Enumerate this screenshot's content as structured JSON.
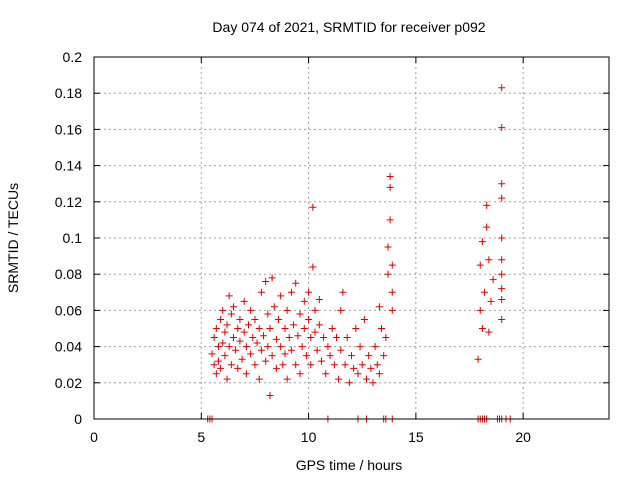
{
  "chart_data": {
    "type": "scatter",
    "title": "Day 074 of 2021, SRMTID for receiver p092",
    "xlabel": "GPS time / hours",
    "ylabel": "SRMTID / TECUs",
    "xlim": [
      0,
      24
    ],
    "ylim": [
      0,
      0.2
    ],
    "xticks": [
      0,
      5,
      10,
      15,
      20
    ],
    "xtick_labels": [
      "0",
      "5",
      "10",
      "15",
      "20"
    ],
    "yticks": [
      0,
      0.02,
      0.04,
      0.06,
      0.08,
      0.1,
      0.12,
      0.14,
      0.16,
      0.18,
      0.2
    ],
    "ytick_labels": [
      "0",
      "0.02",
      "0.04",
      "0.06",
      "0.08",
      "0.1",
      "0.12",
      "0.14",
      "0.16",
      "0.18",
      "0.2"
    ],
    "grid": true,
    "marker": "+",
    "color": "#e00000",
    "series": [
      {
        "name": "SRMTID",
        "points": [
          [
            5.5,
            0.036
          ],
          [
            5.6,
            0.045
          ],
          [
            5.6,
            0.03
          ],
          [
            5.7,
            0.05
          ],
          [
            5.7,
            0.025
          ],
          [
            5.8,
            0.04
          ],
          [
            5.8,
            0.032
          ],
          [
            5.9,
            0.055
          ],
          [
            5.9,
            0.028
          ],
          [
            6.0,
            0.042
          ],
          [
            6.0,
            0.06
          ],
          [
            6.1,
            0.035
          ],
          [
            6.1,
            0.048
          ],
          [
            6.2,
            0.022
          ],
          [
            6.2,
            0.052
          ],
          [
            6.3,
            0.068
          ],
          [
            6.3,
            0.04
          ],
          [
            6.4,
            0.058
          ],
          [
            6.4,
            0.03
          ],
          [
            6.5,
            0.045
          ],
          [
            6.5,
            0.062
          ],
          [
            6.6,
            0.038
          ],
          [
            6.7,
            0.05
          ],
          [
            6.7,
            0.028
          ],
          [
            6.8,
            0.043
          ],
          [
            6.8,
            0.055
          ],
          [
            6.9,
            0.033
          ],
          [
            7.0,
            0.048
          ],
          [
            7.0,
            0.065
          ],
          [
            7.1,
            0.04
          ],
          [
            7.1,
            0.025
          ],
          [
            7.2,
            0.052
          ],
          [
            7.3,
            0.036
          ],
          [
            7.3,
            0.06
          ],
          [
            7.4,
            0.045
          ],
          [
            7.5,
            0.03
          ],
          [
            7.5,
            0.055
          ],
          [
            7.6,
            0.042
          ],
          [
            7.7,
            0.022
          ],
          [
            7.7,
            0.05
          ],
          [
            7.8,
            0.038
          ],
          [
            7.8,
            0.07
          ],
          [
            7.9,
            0.046
          ],
          [
            8.0,
            0.076
          ],
          [
            8.0,
            0.032
          ],
          [
            8.1,
            0.058
          ],
          [
            8.1,
            0.04
          ],
          [
            8.2,
            0.013
          ],
          [
            8.2,
            0.05
          ],
          [
            8.3,
            0.078
          ],
          [
            8.3,
            0.035
          ],
          [
            8.4,
            0.062
          ],
          [
            8.5,
            0.044
          ],
          [
            8.5,
            0.028
          ],
          [
            8.6,
            0.055
          ],
          [
            8.7,
            0.04
          ],
          [
            8.7,
            0.068
          ],
          [
            8.8,
            0.03
          ],
          [
            8.9,
            0.05
          ],
          [
            8.9,
            0.036
          ],
          [
            9.0,
            0.06
          ],
          [
            9.0,
            0.022
          ],
          [
            9.1,
            0.045
          ],
          [
            9.2,
            0.038
          ],
          [
            9.2,
            0.07
          ],
          [
            9.3,
            0.052
          ],
          [
            9.4,
            0.03
          ],
          [
            9.4,
            0.075
          ],
          [
            9.5,
            0.046
          ],
          [
            9.6,
            0.058
          ],
          [
            9.6,
            0.025
          ],
          [
            9.7,
            0.04
          ],
          [
            9.8,
            0.065
          ],
          [
            9.8,
            0.05
          ],
          [
            9.9,
            0.035
          ],
          [
            10.0,
            0.055
          ],
          [
            10.0,
            0.07
          ],
          [
            10.1,
            0.045
          ],
          [
            10.1,
            0.03
          ],
          [
            10.2,
            0.117
          ],
          [
            10.2,
            0.084
          ],
          [
            10.3,
            0.06
          ],
          [
            10.3,
            0.048
          ],
          [
            10.4,
            0.038
          ],
          [
            10.5,
            0.052
          ],
          [
            10.5,
            0.066
          ],
          [
            10.6,
            0.032
          ],
          [
            10.7,
            0.045
          ],
          [
            10.8,
            0.025
          ],
          [
            10.9,
            0.04
          ],
          [
            11.0,
            0.035
          ],
          [
            11.1,
            0.05
          ],
          [
            11.2,
            0.03
          ],
          [
            11.3,
            0.045
          ],
          [
            11.4,
            0.022
          ],
          [
            11.5,
            0.038
          ],
          [
            11.5,
            0.06
          ],
          [
            11.6,
            0.07
          ],
          [
            11.7,
            0.03
          ],
          [
            11.8,
            0.045
          ],
          [
            11.9,
            0.02
          ],
          [
            12.0,
            0.035
          ],
          [
            12.1,
            0.028
          ],
          [
            12.2,
            0.05
          ],
          [
            12.3,
            0.025
          ],
          [
            12.4,
            0.04
          ],
          [
            12.5,
            0.03
          ],
          [
            12.6,
            0.055
          ],
          [
            12.7,
            0.022
          ],
          [
            12.8,
            0.035
          ],
          [
            12.9,
            0.028
          ],
          [
            13.0,
            0.02
          ],
          [
            13.1,
            0.04
          ],
          [
            13.2,
            0.03
          ],
          [
            13.3,
            0.062
          ],
          [
            13.3,
            0.025
          ],
          [
            13.4,
            0.05
          ],
          [
            13.5,
            0.035
          ],
          [
            13.6,
            0.045
          ],
          [
            13.7,
            0.08
          ],
          [
            13.7,
            0.095
          ],
          [
            13.8,
            0.11
          ],
          [
            13.8,
            0.134
          ],
          [
            13.8,
            0.128
          ],
          [
            13.9,
            0.06
          ],
          [
            13.9,
            0.085
          ],
          [
            13.9,
            0.07
          ],
          [
            17.9,
            0.033
          ],
          [
            18.0,
            0.06
          ],
          [
            18.0,
            0.085
          ],
          [
            18.1,
            0.05
          ],
          [
            18.1,
            0.098
          ],
          [
            18.2,
            0.07
          ],
          [
            18.3,
            0.118
          ],
          [
            18.3,
            0.106
          ],
          [
            18.4,
            0.048
          ],
          [
            18.4,
            0.088
          ],
          [
            18.5,
            0.065
          ],
          [
            18.6,
            0.077
          ],
          [
            19.0,
            0.183
          ],
          [
            19.0,
            0.161
          ],
          [
            19.0,
            0.13
          ],
          [
            19.0,
            0.122
          ],
          [
            19.0,
            0.1
          ],
          [
            19.0,
            0.088
          ],
          [
            19.0,
            0.08
          ],
          [
            19.0,
            0.072
          ],
          [
            19.0,
            0.066
          ],
          [
            19.0,
            0.055
          ]
        ],
        "zero_points": [
          5.3,
          5.4,
          5.5,
          10.9,
          12.3,
          12.7,
          13.5,
          13.6,
          13.9,
          17.9,
          18.0,
          18.1,
          18.2,
          18.3,
          18.8,
          18.9,
          19.0,
          19.2,
          19.4
        ]
      }
    ]
  }
}
